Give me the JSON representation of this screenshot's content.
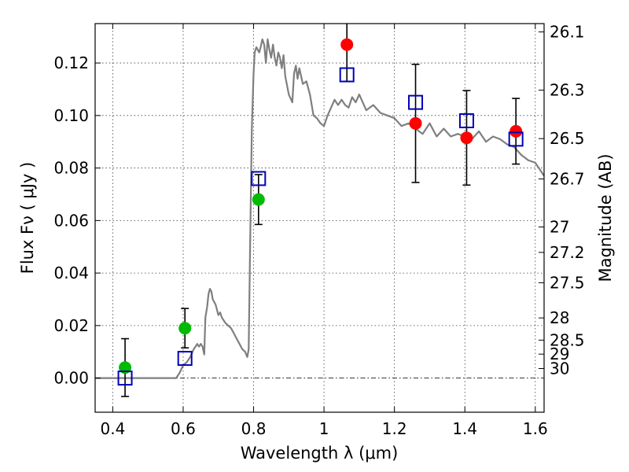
{
  "chart_data": {
    "type": "scatter",
    "xlabel": "Wavelength  λ (μm)",
    "ylabel": "Flux  Fν  ( μJy )",
    "right_ylabel": "Magnitude (AB)",
    "xlim": [
      0.35,
      1.625
    ],
    "ylim": [
      -0.013,
      0.135
    ],
    "x_ticks": [
      0.4,
      0.6,
      0.8,
      1.0,
      1.2,
      1.4,
      1.6
    ],
    "x_tick_labels": [
      "0.4",
      "0.6",
      "0.8",
      "1",
      "1.2",
      "1.4",
      "1.6"
    ],
    "y_ticks": [
      0.0,
      0.02,
      0.04,
      0.06,
      0.08,
      0.1,
      0.12
    ],
    "y_tick_labels": [
      "0.00",
      "0.02",
      "0.04",
      "0.06",
      "0.08",
      "0.10",
      "0.12"
    ],
    "right_ticks": [
      {
        "label": "26.1",
        "value": 26.1
      },
      {
        "label": "26.3",
        "value": 26.3
      },
      {
        "label": "26.5",
        "value": 26.5
      },
      {
        "label": "26.7",
        "value": 26.7
      },
      {
        "label": "27",
        "value": 27.0
      },
      {
        "label": "27.2",
        "value": 27.2
      },
      {
        "label": "27.5",
        "value": 27.5
      },
      {
        "label": "28",
        "value": 28.0
      },
      {
        "label": "28.5",
        "value": 28.5
      },
      {
        "label": "29",
        "value": 29.0
      },
      {
        "label": "30",
        "value": 30.0
      }
    ],
    "grid": true,
    "zero_line": true,
    "colors": {
      "model": "#7f7f7f",
      "green": "#00bb00",
      "red": "#ff0000",
      "square": "#0000bb",
      "error": "#000000"
    },
    "model_sed": {
      "x": [
        0.35,
        0.58,
        0.59,
        0.6,
        0.61,
        0.62,
        0.63,
        0.635,
        0.64,
        0.645,
        0.65,
        0.655,
        0.66,
        0.663,
        0.668,
        0.672,
        0.676,
        0.68,
        0.684,
        0.688,
        0.692,
        0.696,
        0.7,
        0.705,
        0.71,
        0.715,
        0.72,
        0.728,
        0.736,
        0.744,
        0.752,
        0.76,
        0.768,
        0.776,
        0.782,
        0.786,
        0.79,
        0.795,
        0.8,
        0.803,
        0.808,
        0.812,
        0.816,
        0.82,
        0.825,
        0.83,
        0.835,
        0.84,
        0.845,
        0.85,
        0.855,
        0.86,
        0.865,
        0.87,
        0.875,
        0.88,
        0.885,
        0.89,
        0.9,
        0.91,
        0.915,
        0.92,
        0.925,
        0.93,
        0.94,
        0.95,
        0.96,
        0.97,
        0.98,
        0.99,
        1.0,
        1.01,
        1.02,
        1.03,
        1.04,
        1.05,
        1.06,
        1.07,
        1.08,
        1.09,
        1.1,
        1.12,
        1.14,
        1.16,
        1.18,
        1.2,
        1.22,
        1.24,
        1.26,
        1.28,
        1.3,
        1.32,
        1.34,
        1.36,
        1.38,
        1.4,
        1.42,
        1.44,
        1.46,
        1.48,
        1.5,
        1.52,
        1.54,
        1.56,
        1.58,
        1.6,
        1.625
      ],
      "y": [
        0.0,
        0.0,
        0.002,
        0.005,
        0.006,
        0.008,
        0.011,
        0.012,
        0.013,
        0.012,
        0.013,
        0.012,
        0.009,
        0.023,
        0.027,
        0.032,
        0.034,
        0.033,
        0.03,
        0.029,
        0.028,
        0.026,
        0.024,
        0.025,
        0.023,
        0.022,
        0.021,
        0.02,
        0.019,
        0.017,
        0.015,
        0.013,
        0.011,
        0.01,
        0.008,
        0.011,
        0.05,
        0.095,
        0.116,
        0.124,
        0.126,
        0.125,
        0.124,
        0.126,
        0.129,
        0.127,
        0.12,
        0.129,
        0.125,
        0.122,
        0.127,
        0.122,
        0.119,
        0.124,
        0.122,
        0.118,
        0.123,
        0.115,
        0.108,
        0.105,
        0.116,
        0.119,
        0.114,
        0.118,
        0.112,
        0.113,
        0.108,
        0.1,
        0.099,
        0.097,
        0.096,
        0.1,
        0.103,
        0.106,
        0.104,
        0.106,
        0.104,
        0.103,
        0.107,
        0.105,
        0.108,
        0.102,
        0.104,
        0.101,
        0.1,
        0.099,
        0.096,
        0.097,
        0.095,
        0.093,
        0.097,
        0.092,
        0.095,
        0.092,
        0.093,
        0.092,
        0.091,
        0.094,
        0.09,
        0.092,
        0.091,
        0.089,
        0.088,
        0.085,
        0.083,
        0.082,
        0.077
      ]
    },
    "green_points": [
      {
        "x": 0.435,
        "y": 0.004,
        "err": 0.011
      },
      {
        "x": 0.605,
        "y": 0.019,
        "err": 0.0075
      },
      {
        "x": 0.814,
        "y": 0.068,
        "err": 0.0095
      }
    ],
    "red_points": [
      {
        "x": 1.065,
        "y": 0.127,
        "err": 0.014
      },
      {
        "x": 1.26,
        "y": 0.097,
        "err": 0.0225
      },
      {
        "x": 1.405,
        "y": 0.0915,
        "err": 0.018
      },
      {
        "x": 1.545,
        "y": 0.094,
        "err": 0.0125
      }
    ],
    "model_squares": [
      {
        "x": 0.435,
        "y": 0.0
      },
      {
        "x": 0.605,
        "y": 0.0075
      },
      {
        "x": 0.814,
        "y": 0.076
      },
      {
        "x": 1.065,
        "y": 0.1155
      },
      {
        "x": 1.26,
        "y": 0.105
      },
      {
        "x": 1.405,
        "y": 0.098
      },
      {
        "x": 1.545,
        "y": 0.091
      }
    ]
  }
}
